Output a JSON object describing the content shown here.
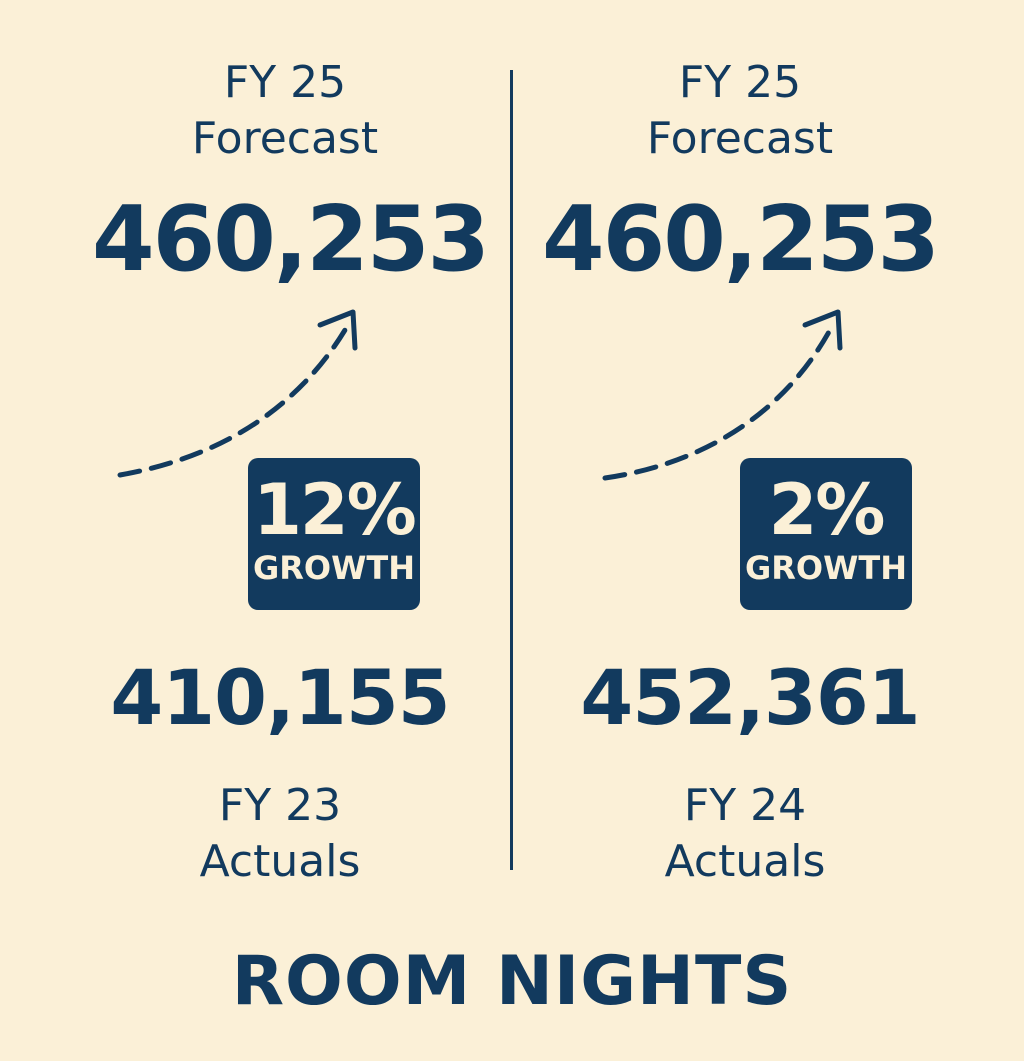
{
  "panels": [
    {
      "forecast_label": [
        "FY 25",
        "Forecast"
      ],
      "forecast_value": "460,253",
      "growth_percent": "12%",
      "growth_label": "GROWTH",
      "actual_value": "410,155",
      "actual_label": [
        "FY 23",
        "Actuals"
      ],
      "arrow_icon": "dashed-up-arrow"
    },
    {
      "forecast_label": [
        "FY 25",
        "Forecast"
      ],
      "forecast_value": "460,253",
      "growth_percent": "2%",
      "growth_label": "GROWTH",
      "actual_value": "452,361",
      "actual_label": [
        "FY 24",
        "Actuals"
      ],
      "arrow_icon": "dashed-up-arrow"
    }
  ],
  "footer_title": "ROOM NIGHTS",
  "colors": {
    "background": "#fbf0d7",
    "primary": "#123a5e",
    "badge_text": "#fbf0d7"
  }
}
